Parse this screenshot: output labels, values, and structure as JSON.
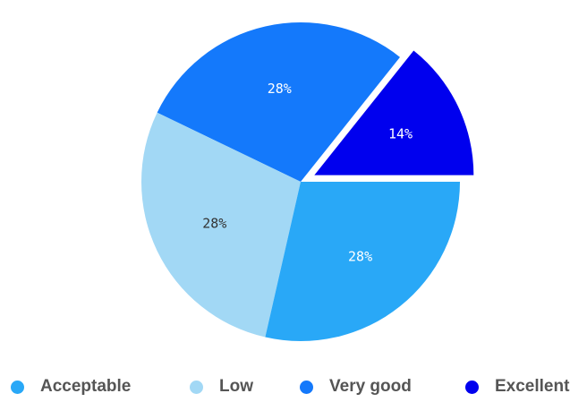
{
  "chart_data": {
    "type": "pie",
    "categories": [
      "Acceptable",
      "Low",
      "Very good",
      "Excellent"
    ],
    "values": [
      28,
      28,
      28,
      14
    ],
    "labels": [
      "28%",
      "28%",
      "28%",
      "14%"
    ],
    "colors": [
      "#29a8f7",
      "#a2d8f5",
      "#1479fb",
      "#0000ee"
    ],
    "label_colors": [
      "#ffffff",
      "#333333",
      "#ffffff",
      "#ffffff"
    ],
    "legend_position": "bottom",
    "title": "",
    "exploded": "Excellent"
  },
  "legend": {
    "items": [
      {
        "label": "Acceptable",
        "color": "#29a8f7"
      },
      {
        "label": "Low",
        "color": "#a2d8f5"
      },
      {
        "label": "Very good",
        "color": "#1479fb"
      },
      {
        "label": "Excellent",
        "color": "#0000ee"
      }
    ]
  }
}
